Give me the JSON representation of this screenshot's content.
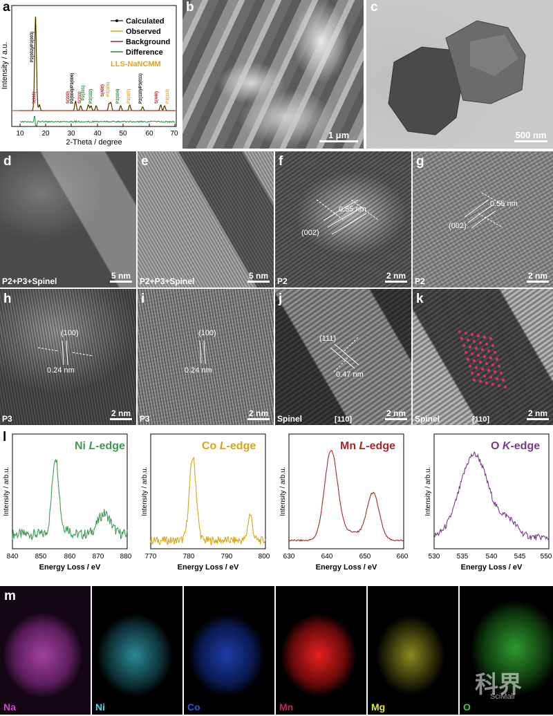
{
  "panel_letters": {
    "a": "a",
    "b": "b",
    "c": "c",
    "d": "d",
    "e": "e",
    "f": "f",
    "g": "g",
    "h": "h",
    "i": "i",
    "j": "j",
    "k": "k",
    "l": "l",
    "m": "m"
  },
  "xrd": {
    "ylabel": "Intensity / a.u.",
    "xlabel": "2-Theta / degree",
    "xticks": [
      "10",
      "20",
      "30",
      "40",
      "50",
      "60",
      "70"
    ],
    "legend": [
      {
        "label": "Calculated",
        "color": "#111111"
      },
      {
        "label": "Observed",
        "color": "#d9a514"
      },
      {
        "label": "Background",
        "color": "#b0232a"
      },
      {
        "label": "Difference",
        "color": "#1e8a3c"
      }
    ],
    "sample": "LLS-NaNCMM",
    "sample_color": "#e2a512",
    "peak_labels": [
      {
        "text": "P2(002)/P3(003)",
        "color": "#111111"
      },
      {
        "text": "S(111)",
        "color": "#b0232a"
      },
      {
        "text": "S(220)",
        "color": "#b0232a"
      },
      {
        "text": "P2(004)/P3(006)",
        "color": "#111111"
      },
      {
        "text": "S(311)",
        "color": "#b0232a"
      },
      {
        "text": "P2(101)",
        "color": "#1e8a3c"
      },
      {
        "text": "P2(102)",
        "color": "#1e8a3c"
      },
      {
        "text": "S(400)",
        "color": "#b0232a"
      },
      {
        "text": "P3(105)",
        "color": "#e2a512"
      },
      {
        "text": "P2(104)",
        "color": "#1e8a3c"
      },
      {
        "text": "P3(107)",
        "color": "#e2a512"
      },
      {
        "text": "P2(110)/P3(011)",
        "color": "#111111"
      },
      {
        "text": "S(440)",
        "color": "#b0232a"
      },
      {
        "text": "P3(113)",
        "color": "#e2a512"
      }
    ]
  },
  "sem": {
    "scale": "1 μm"
  },
  "tem": {
    "scale": "500 nm"
  },
  "hr": {
    "d": {
      "caption": "P2+P3+Spinel",
      "scale": "5 nm"
    },
    "e": {
      "caption": "P2+P3+Spinel",
      "scale": "5 nm"
    },
    "f": {
      "caption": "P2",
      "scale": "2 nm",
      "plane": "(002)",
      "d": "0.55 nm"
    },
    "g": {
      "caption": "P2",
      "scale": "2 nm",
      "plane": "(002)",
      "d": "0.55 nm"
    },
    "h": {
      "caption": "P3",
      "scale": "2 nm",
      "plane": "(100)",
      "d": "0.24 nm"
    },
    "i": {
      "caption": "P3",
      "scale": "2 nm",
      "plane": "(100)",
      "d": "0.24 nm"
    },
    "j": {
      "caption": "Spinel",
      "zone": "[110]",
      "scale": "2 nm",
      "plane": "(111)",
      "d": "0.47 nm"
    },
    "k": {
      "caption": "Spinel",
      "zone": "[110]",
      "scale": "2 nm"
    }
  },
  "eels": {
    "ylabel": "Intensity / arb.u.",
    "xlabel": "Energy Loss / eV",
    "panels": [
      {
        "title": "Ni L-edge",
        "title_main": "Ni ",
        "title_italic": "L",
        "title_end": "-edge",
        "color": "#3a9a55",
        "xticks": [
          "840",
          "850",
          "860",
          "870",
          "880"
        ]
      },
      {
        "title": "Co L-edge",
        "title_main": "Co ",
        "title_italic": "L",
        "title_end": "-edge",
        "color": "#d9a514",
        "xticks": [
          "770",
          "780",
          "790",
          "800"
        ]
      },
      {
        "title": "Mn L-edge",
        "title_main": "Mn ",
        "title_italic": "L",
        "title_end": "-edge",
        "color": "#b0232a",
        "xticks": [
          "630",
          "640",
          "650",
          "660"
        ]
      },
      {
        "title": "O K-edge",
        "title_main": "O ",
        "title_italic": "K",
        "title_end": "-edge",
        "color": "#7a3a8a",
        "xticks": [
          "530",
          "535",
          "540",
          "545",
          "550"
        ]
      }
    ]
  },
  "eds": [
    {
      "element": "Na",
      "color": "#c84cc8"
    },
    {
      "element": "Ni",
      "color": "#4cd6e6"
    },
    {
      "element": "Co",
      "color": "#2a56e6"
    },
    {
      "element": "Mn",
      "color": "#e62020"
    },
    {
      "element": "Mg",
      "color": "#e6e630"
    },
    {
      "element": "O",
      "color": "#3ad23a"
    }
  ],
  "watermark": {
    "text": "科界",
    "sub": "SciMall"
  }
}
